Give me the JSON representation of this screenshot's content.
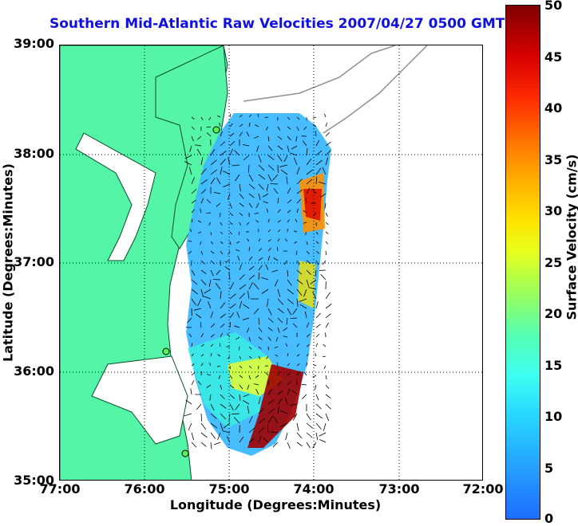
{
  "title": "Southern Mid-Atlantic Raw Velocities 2007/04/27 0500 GMT",
  "axes": {
    "xlabel": "Longitude (Degrees:Minutes)",
    "ylabel": "Latitude (Degrees:Minutes)",
    "x_ticks": [
      "77:00",
      "76:00",
      "75:00",
      "74:00",
      "73:00",
      "72:00"
    ],
    "y_ticks": [
      "39:00",
      "38:00",
      "37:00",
      "36:00",
      "35:00"
    ],
    "grid": "dotted"
  },
  "colorbar": {
    "label": "Surface Velocity (cm/s)",
    "ticks": [
      "50",
      "45",
      "40",
      "35",
      "30",
      "25",
      "20",
      "15",
      "10",
      "5",
      "0"
    ],
    "range": [
      0,
      50
    ]
  },
  "colors": {
    "land": "#55f5a8",
    "title": "#1010e0",
    "field_base": "#3db8ff",
    "field_high": "#c80000"
  }
}
